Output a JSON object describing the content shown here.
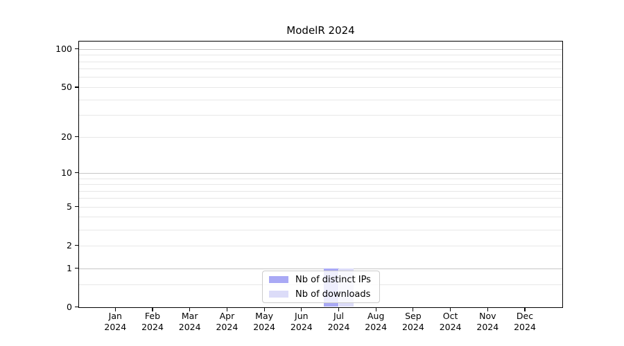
{
  "title": "ModelR 2024",
  "chart_data": {
    "type": "bar",
    "title": "ModelR 2024",
    "categories": [
      "Jan 2024",
      "Feb 2024",
      "Mar 2024",
      "Apr 2024",
      "May 2024",
      "Jun 2024",
      "Jul 2024",
      "Aug 2024",
      "Sep 2024",
      "Oct 2024",
      "Nov 2024",
      "Dec 2024"
    ],
    "series": [
      {
        "name": "Nb of distinct IPs",
        "color": "#a9a9f5",
        "values": [
          0,
          0,
          0,
          0,
          0,
          0,
          1,
          0,
          0,
          0,
          0,
          0
        ]
      },
      {
        "name": "Nb of downloads",
        "color": "#dcdcf8",
        "values": [
          0,
          0,
          0,
          0,
          0,
          0,
          1,
          0,
          0,
          0,
          0,
          0
        ]
      }
    ],
    "y_axis": {
      "scale": "log1p",
      "tick_values": [
        0,
        1,
        2,
        5,
        10,
        20,
        50,
        100
      ],
      "tick_labels": [
        "0",
        "1",
        "2",
        "5",
        "10",
        "20",
        "50",
        "100"
      ],
      "major_gridlines": [
        1,
        10,
        100
      ],
      "minor_gridlines": [
        0.5,
        2,
        3,
        4,
        5,
        6,
        7,
        8,
        9,
        20,
        30,
        40,
        50,
        60,
        70,
        80,
        90
      ],
      "ylim": [
        0,
        115
      ],
      "grid": true
    },
    "legend": {
      "position": "lower center",
      "entries": [
        "Nb of distinct IPs",
        "Nb of downloads"
      ]
    }
  },
  "colors": {
    "background": "#ffffff",
    "axis": "#000000",
    "major_grid": "#c6c6c6",
    "minor_grid": "#e7e7e7",
    "legend_border": "#cbcbcb",
    "series_distinct_ips": "#a9a9f5",
    "series_downloads": "#dcdcf8"
  }
}
